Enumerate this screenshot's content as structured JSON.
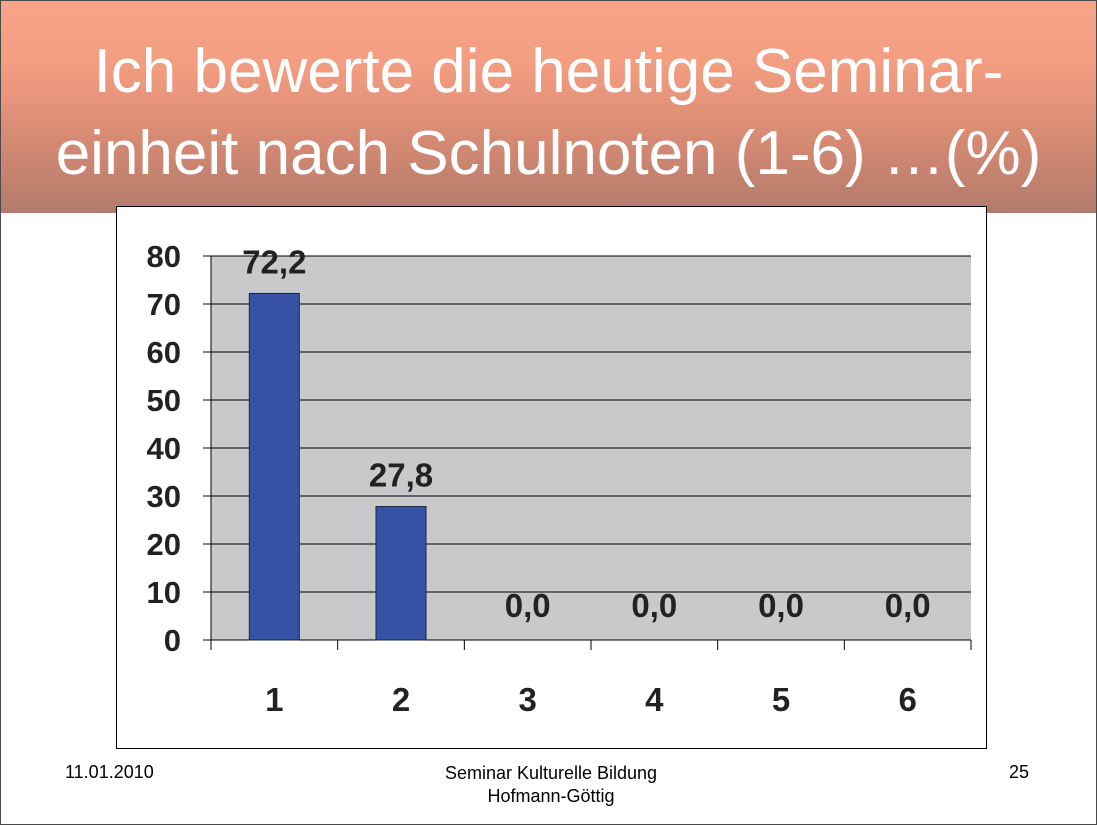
{
  "slide": {
    "title_line1": "Ich bewerte die heutige Seminar-",
    "title_line2": "einheit nach Schulnoten (1-6) …(%)",
    "footer_date": "11.01.2010",
    "footer_center_line1": "Seminar Kulturelle Bildung",
    "footer_center_line2": "Hofmann-Göttig",
    "page_number": "25"
  },
  "chart_data": {
    "type": "bar",
    "title": "",
    "xlabel": "",
    "ylabel": "",
    "categories": [
      "1",
      "2",
      "3",
      "4",
      "5",
      "6"
    ],
    "values": [
      72.2,
      27.8,
      0.0,
      0.0,
      0.0,
      0.0
    ],
    "data_labels": [
      "72,2",
      "27,8",
      "0,0",
      "0,0",
      "0,0",
      "0,0"
    ],
    "ylim": [
      0,
      80
    ],
    "yticks": [
      0,
      10,
      20,
      30,
      40,
      50,
      60,
      70,
      80
    ],
    "grid": true,
    "legend": "none",
    "colors": {
      "bar": "#3652a6",
      "plot_background": "#c8c9cb",
      "gridline": "#000000"
    }
  }
}
